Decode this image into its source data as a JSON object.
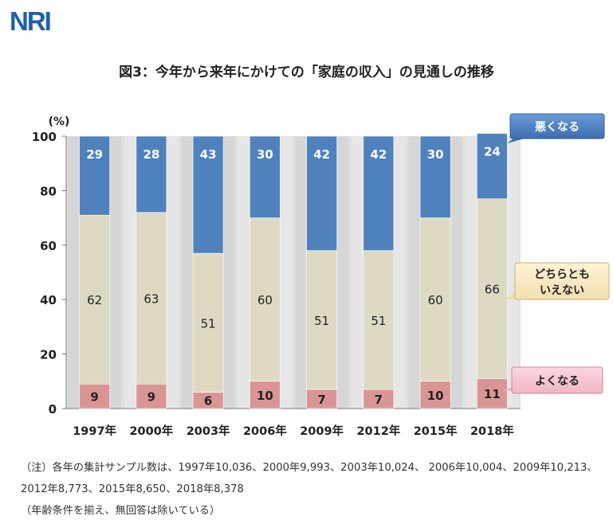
{
  "logo": "NRI",
  "title": "図3：今年から来年にかけての「家庭の収入」の見通しの推移",
  "notes": [
    "（注）各年の集計サンプル数は、1997年10,036、2000年9,993、2003年10,024、 2006年10,004、2009年10,213、2012年8,773、2015年8,650、2018年8,378",
    "（年齢条件を揃え、無回答は除いている）"
  ],
  "colors": {
    "worse": "#4f81bd",
    "neither": "#ddd9c3",
    "better": "#d99594",
    "plot_bg": "#e0e0e0",
    "stripe": "#c8c8c8"
  },
  "chart_data": {
    "type": "bar",
    "stacked": true,
    "ylabel": "(%)",
    "ylim": [
      0,
      100
    ],
    "yticks": [
      0,
      20,
      40,
      60,
      80,
      100
    ],
    "categories": [
      "1997年",
      "2000年",
      "2003年",
      "2006年",
      "2009年",
      "2012年",
      "2015年",
      "2018年"
    ],
    "series": [
      {
        "name": "よくなる",
        "key": "better",
        "values": [
          9,
          9,
          6,
          10,
          7,
          7,
          10,
          11
        ]
      },
      {
        "name": "どちらともいえない",
        "key": "neither",
        "values": [
          62,
          63,
          51,
          60,
          51,
          51,
          60,
          66
        ]
      },
      {
        "name": "悪くなる",
        "key": "worse",
        "values": [
          29,
          28,
          43,
          30,
          42,
          42,
          30,
          24
        ]
      }
    ],
    "callouts": {
      "worse": "悪くなる",
      "neither_line1": "どちらとも",
      "neither_line2": "いえない",
      "better": "よくなる"
    }
  }
}
